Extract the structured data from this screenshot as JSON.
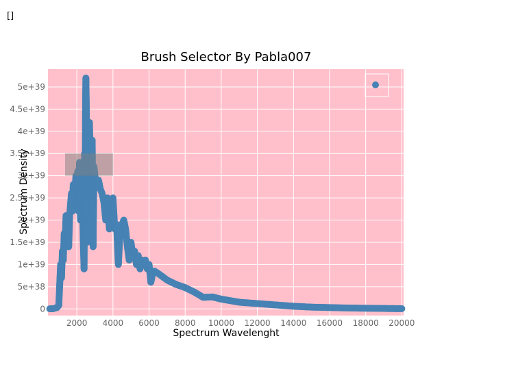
{
  "page": {
    "top_text": "[]"
  },
  "chart_data": {
    "type": "scatter",
    "title": "Brush Selector By Pabla007",
    "xlabel": "Spectrum Wavelenght",
    "ylabel": "Spectrum Density",
    "xlim": [
      400,
      20100
    ],
    "ylim": [
      -1.5e+38,
      5.4e+39
    ],
    "xticks": [
      2000,
      4000,
      6000,
      8000,
      10000,
      12000,
      14000,
      16000,
      18000,
      20000
    ],
    "yticks": [
      0,
      5e+38,
      1e+39,
      1.5e+39,
      2e+39,
      2.5e+39,
      3e+39,
      3.5e+39,
      4e+39,
      4.5e+39,
      5e+39
    ],
    "ytick_labels": [
      "0",
      "5e+38",
      "1e+39",
      "1.5e+39",
      "2e+39",
      "2.5e+39",
      "3e+39",
      "3.5e+39",
      "4e+39",
      "4.5e+39",
      "5e+39"
    ],
    "grid": true,
    "legend": "top-right",
    "colors": {
      "plot_bg": "#ffc0cb",
      "marker": "#4682b4",
      "grid": "#ffffff",
      "brush": "#808080"
    },
    "brush": {
      "x": [
        1350,
        4000
      ],
      "y": [
        3e+39,
        3.5e+39
      ]
    },
    "series": [
      {
        "x": [
          500,
          700,
          900,
          1000,
          1100,
          1150,
          1200,
          1250,
          1300,
          1350,
          1400,
          1450,
          1500,
          1550,
          1600,
          1700,
          1750,
          1800,
          1850,
          1900,
          1950,
          2000,
          2050,
          2100,
          2150,
          2200,
          2250,
          2300,
          2350,
          2400,
          2430,
          2460,
          2480,
          2500,
          2520,
          2540,
          2560,
          2580,
          2600,
          2630,
          2660,
          2700,
          2750,
          2800,
          2850,
          2900,
          2950,
          3000,
          3100,
          3200,
          3300,
          3400,
          3500,
          3600,
          3700,
          3800,
          3900,
          4000,
          4100,
          4200,
          4300,
          4400,
          4500,
          4600,
          4700,
          4800,
          4900,
          5000,
          5100,
          5200,
          5300,
          5400,
          5500,
          5600,
          5700,
          5800,
          5900,
          6000,
          6100,
          6200,
          6300,
          6500,
          7000,
          7500,
          8000,
          8500,
          9000,
          9500,
          10000,
          11000,
          12000,
          13000,
          14000,
          15000,
          16000,
          17000,
          18000,
          19000,
          20000
        ],
        "y": [
          2e+36,
          5e+36,
          3e+37,
          8e+37,
          1e+39,
          7e+38,
          1.3e+39,
          1.1e+39,
          1.7e+39,
          1.5e+39,
          2.1e+39,
          1.9e+39,
          2e+39,
          1.4e+39,
          2.1e+39,
          2.6e+39,
          2.2e+39,
          2.8e+39,
          2.5e+39,
          2.7e+39,
          3e+39,
          2.4e+39,
          3.1e+39,
          2.2e+39,
          3.3e+39,
          2e+39,
          2.8e+39,
          3e+39,
          1.6e+39,
          9e+38,
          3.5e+39,
          1.9e+39,
          4.5e+39,
          5.2e+39,
          4.7e+39,
          4e+39,
          3.2e+39,
          1.5e+39,
          3.8e+39,
          2.6e+39,
          3.4e+39,
          4.2e+39,
          3e+39,
          2.2e+39,
          3.8e+39,
          1.4e+39,
          3.2e+39,
          3e+39,
          2.8e+39,
          2.9e+39,
          2.7e+39,
          2.6e+39,
          2.4e+39,
          2e+39,
          2.5e+39,
          1.8e+39,
          2e+39,
          2.5e+39,
          1.8e+39,
          1.9e+39,
          1e+39,
          1.8e+39,
          1.9e+39,
          2e+39,
          1.8e+39,
          1.4e+39,
          1.1e+39,
          1.5e+39,
          1.2e+39,
          1.3e+39,
          1e+39,
          1.2e+39,
          9e+38,
          1.1e+39,
          1e+39,
          1.1e+39,
          9e+38,
          1e+39,
          6e+38,
          8e+38,
          8.5e+38,
          8e+38,
          6.5e+38,
          5.5e+38,
          4.8e+38,
          3.8e+38,
          2.6e+38,
          2.7e+38,
          2.2e+38,
          1.5e+38,
          1.2e+38,
          9e+37,
          6e+37,
          4e+37,
          3e+37,
          2e+37,
          1.5e+37,
          1e+37,
          5e+36
        ]
      }
    ]
  }
}
